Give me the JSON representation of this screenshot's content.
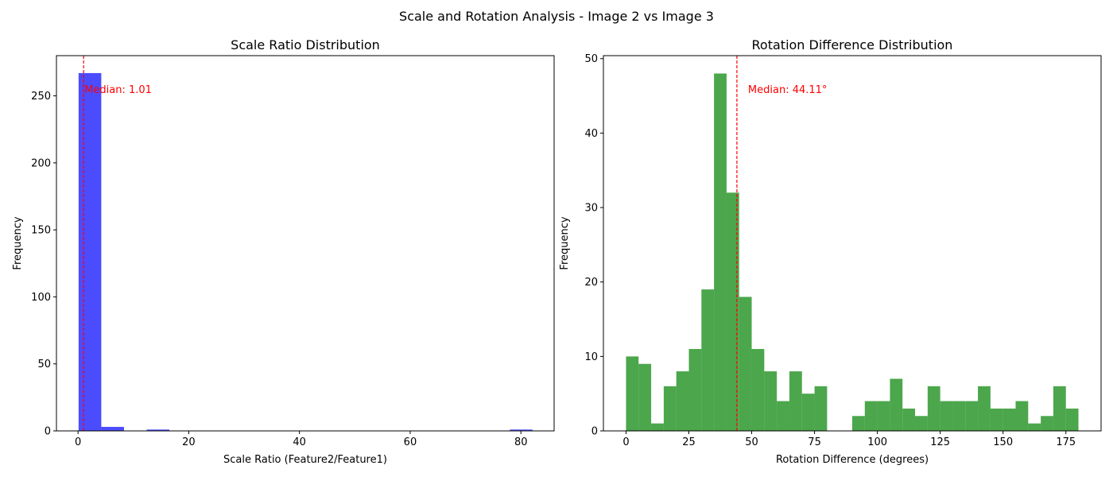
{
  "figure_title": "Scale and Rotation Analysis - Image 2 vs Image 3",
  "chart_data": [
    {
      "type": "bar",
      "title": "Scale Ratio Distribution",
      "xlabel": "Scale Ratio (Feature2/Feature1)",
      "ylabel": "Frequency",
      "xlim": [
        -3.9,
        86.0
      ],
      "ylim": [
        0,
        280
      ],
      "xticks": [
        0,
        20,
        40,
        60,
        80
      ],
      "yticks": [
        0,
        50,
        100,
        150,
        200,
        250
      ],
      "bin_edges": [
        0.1,
        4.2,
        8.3,
        12.4,
        16.5,
        20.6,
        24.7,
        28.8,
        32.9,
        37.0,
        41.1,
        45.2,
        49.3,
        53.4,
        57.5,
        61.6,
        65.7,
        69.8,
        73.9,
        78.0,
        82.1
      ],
      "values": [
        267,
        3,
        0,
        1,
        0,
        0,
        0,
        0,
        0,
        0,
        0,
        0,
        0,
        0,
        0,
        0,
        0,
        0,
        0,
        1
      ],
      "bar_color": "#0000ff",
      "median": 1.01,
      "median_label": "Median: 1.01",
      "median_color": "#ff0000"
    },
    {
      "type": "bar",
      "title": "Rotation Difference Distribution",
      "xlabel": "Rotation Difference (degrees)",
      "ylabel": "Frequency",
      "xlim": [
        -9,
        189
      ],
      "ylim": [
        0,
        50.4
      ],
      "xticks": [
        0,
        25,
        50,
        75,
        100,
        125,
        150,
        175
      ],
      "yticks": [
        0,
        10,
        20,
        30,
        40,
        50
      ],
      "bin_start": 0,
      "bin_width": 5,
      "values": [
        10,
        9,
        1,
        6,
        8,
        11,
        19,
        48,
        32,
        18,
        11,
        8,
        4,
        8,
        5,
        6,
        0,
        0,
        2,
        4,
        4,
        7,
        3,
        2,
        6,
        4,
        4,
        4,
        6,
        3,
        3,
        4,
        1,
        2,
        6,
        3
      ],
      "bar_color": "#008000",
      "median": 44.11,
      "median_label": "Median: 44.11°",
      "median_color": "#ff0000"
    }
  ]
}
